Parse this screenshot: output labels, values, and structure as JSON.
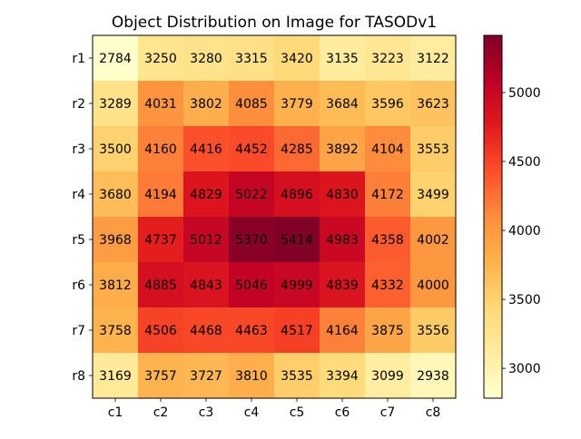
{
  "chart_data": {
    "type": "heatmap",
    "title": "Object Distribution on Image for TASODv1",
    "xlabel": "",
    "ylabel": "",
    "x_categories": [
      "c1",
      "c2",
      "c3",
      "c4",
      "c5",
      "c6",
      "c7",
      "c8"
    ],
    "y_categories": [
      "r1",
      "r2",
      "r3",
      "r4",
      "r5",
      "r6",
      "r7",
      "r8"
    ],
    "values": [
      [
        2784,
        3250,
        3280,
        3315,
        3420,
        3135,
        3223,
        3122
      ],
      [
        3289,
        4031,
        3802,
        4085,
        3779,
        3684,
        3596,
        3623
      ],
      [
        3500,
        4160,
        4416,
        4452,
        4285,
        3892,
        4104,
        3553
      ],
      [
        3680,
        4194,
        4829,
        5022,
        4896,
        4830,
        4172,
        3499
      ],
      [
        3968,
        4737,
        5012,
        5370,
        5414,
        4983,
        4358,
        4002
      ],
      [
        3812,
        4885,
        4843,
        5046,
        4999,
        4839,
        4332,
        4000
      ],
      [
        3758,
        4506,
        4468,
        4463,
        4517,
        4164,
        3875,
        3556
      ],
      [
        3169,
        3757,
        3727,
        3810,
        3535,
        3394,
        3099,
        2938
      ]
    ],
    "colormap": "YlOrRd",
    "colorbar": {
      "range": [
        2784,
        5414
      ],
      "ticks": [
        3000,
        3500,
        4000,
        4500,
        5000
      ],
      "tick_labels": [
        "3000",
        "3500",
        "4000",
        "4500",
        "5000"
      ],
      "placement": "right"
    },
    "grid": false
  }
}
